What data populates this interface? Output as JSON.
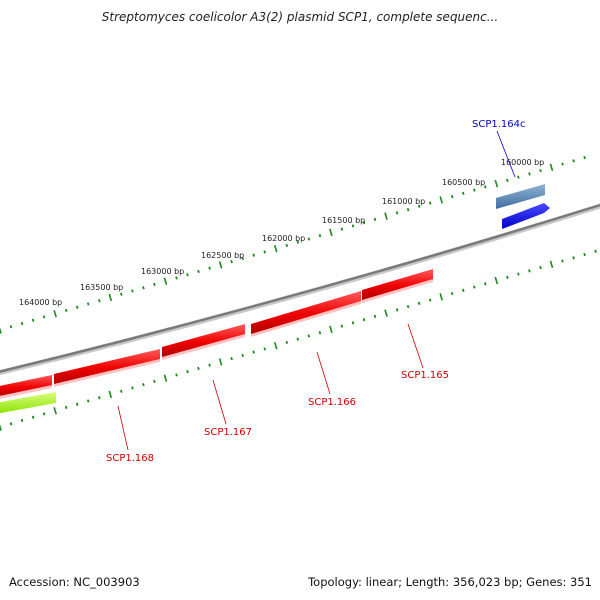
{
  "title": "Streptomyces coelicolor A3(2) plasmid SCP1, complete sequenc...",
  "footer": {
    "accession": "Accession: NC_003903",
    "info": "Topology: linear; Length: 356,023 bp; Genes: 351"
  },
  "ruler": {
    "labels": [
      "160000 bp",
      "160500 bp",
      "161000 bp",
      "161500 bp",
      "162000 bp",
      "162500 bp",
      "163000 bp",
      "163500 bp",
      "164000 bp"
    ]
  },
  "colors": {
    "backbone": "#888888",
    "ruler_dots": "#1a8a1a",
    "forward_gene": "#ee0000",
    "reverse_gene": "#0000ee",
    "gene_label_red": "#cc0000",
    "gene_label_blue": "#0000cc",
    "lime_feature": "#aaff33"
  },
  "genes": [
    {
      "label": "SCP1.164c",
      "strand": "reverse",
      "color": "blue"
    },
    {
      "label": "SCP1.165",
      "strand": "forward",
      "color": "red"
    },
    {
      "label": "SCP1.166",
      "strand": "forward",
      "color": "red"
    },
    {
      "label": "SCP1.167",
      "strand": "forward",
      "color": "red"
    },
    {
      "label": "SCP1.168",
      "strand": "forward",
      "color": "red"
    }
  ]
}
